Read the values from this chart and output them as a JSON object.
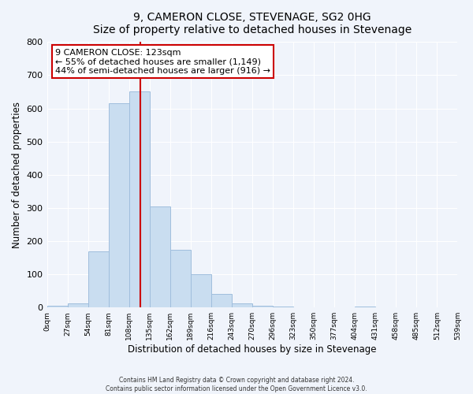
{
  "title": "9, CAMERON CLOSE, STEVENAGE, SG2 0HG",
  "subtitle": "Size of property relative to detached houses in Stevenage",
  "xlabel": "Distribution of detached houses by size in Stevenage",
  "ylabel": "Number of detached properties",
  "bin_edges": [
    0,
    27,
    54,
    81,
    108,
    135,
    162,
    189,
    216,
    243,
    270,
    297,
    324,
    351,
    378,
    405,
    432,
    459,
    486,
    513,
    540
  ],
  "bar_heights": [
    5,
    12,
    170,
    615,
    650,
    305,
    175,
    100,
    40,
    12,
    5,
    2,
    0,
    0,
    0,
    2,
    0,
    0,
    0,
    0
  ],
  "bar_color": "#c9ddf0",
  "bar_edge_color": "#a0bedd",
  "property_line_x": 123,
  "property_line_color": "#cc0000",
  "annotation_title": "9 CAMERON CLOSE: 123sqm",
  "annotation_line1": "← 55% of detached houses are smaller (1,149)",
  "annotation_line2": "44% of semi-detached houses are larger (916) →",
  "annotation_box_color": "#cc0000",
  "ylim": [
    0,
    800
  ],
  "yticks": [
    0,
    100,
    200,
    300,
    400,
    500,
    600,
    700,
    800
  ],
  "tick_labels": [
    "0sqm",
    "27sqm",
    "54sqm",
    "81sqm",
    "108sqm",
    "135sqm",
    "162sqm",
    "189sqm",
    "216sqm",
    "243sqm",
    "270sqm",
    "296sqm",
    "323sqm",
    "350sqm",
    "377sqm",
    "404sqm",
    "431sqm",
    "458sqm",
    "485sqm",
    "512sqm",
    "539sqm"
  ],
  "footer_line1": "Contains HM Land Registry data © Crown copyright and database right 2024.",
  "footer_line2": "Contains public sector information licensed under the Open Government Licence v3.0.",
  "bg_color": "#f0f4fb",
  "plot_bg_color": "#f0f4fb",
  "grid_color": "#ffffff"
}
